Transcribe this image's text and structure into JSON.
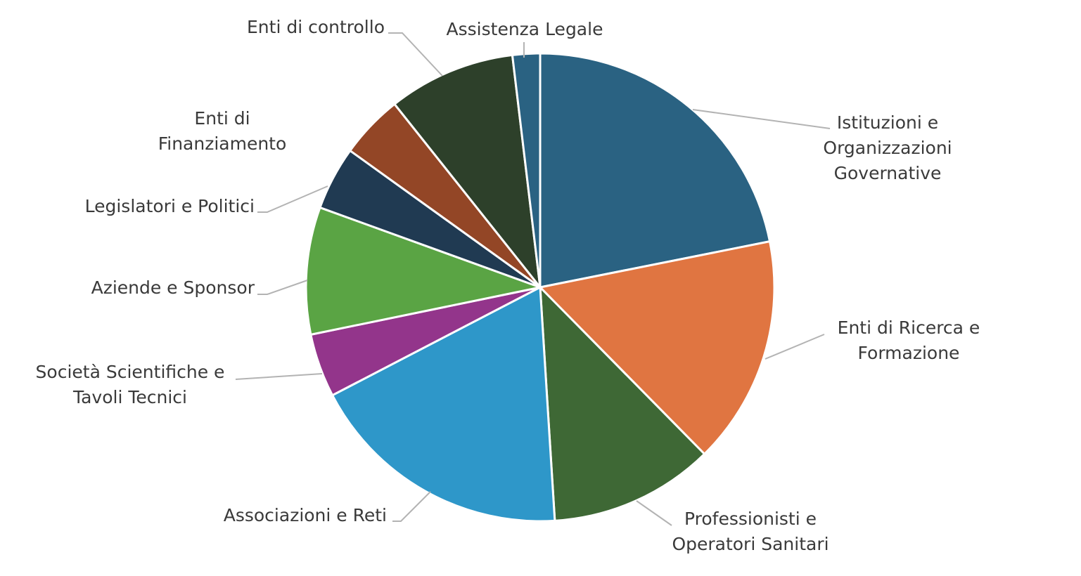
{
  "chart_data": {
    "type": "pie",
    "title": "",
    "start_angle_deg": 0,
    "direction": "clockwise",
    "slices": [
      {
        "label": [
          "Istituzioni e",
          "Organizzazioni",
          "Governative"
        ],
        "value": 21.9,
        "color": "#2a6282"
      },
      {
        "label": [
          "Enti di Ricerca e",
          "Formazione"
        ],
        "value": 15.8,
        "color": "#e07541"
      },
      {
        "label": [
          "Professionisti e",
          "Operatori Sanitari"
        ],
        "value": 11.4,
        "color": "#3e6835"
      },
      {
        "label": [
          "Associazioni e Reti"
        ],
        "value": 18.4,
        "color": "#2e97c9"
      },
      {
        "label": [
          "Società Scientifiche e",
          "Tavoli Tecnici"
        ],
        "value": 4.4,
        "color": "#93358b"
      },
      {
        "label": [
          "Aziende e Sponsor"
        ],
        "value": 8.8,
        "color": "#5aa444"
      },
      {
        "label": [
          "Legislatori e Politici"
        ],
        "value": 4.4,
        "color": "#203a52"
      },
      {
        "label": [
          "Enti di",
          "Finanziamento"
        ],
        "value": 4.4,
        "color": "#934626"
      },
      {
        "label": [
          "Enti di controllo"
        ],
        "value": 8.8,
        "color": "#2d402a"
      },
      {
        "label": [
          "Assistenza Legale"
        ],
        "value": 1.9,
        "color": "#2a6282"
      }
    ]
  }
}
